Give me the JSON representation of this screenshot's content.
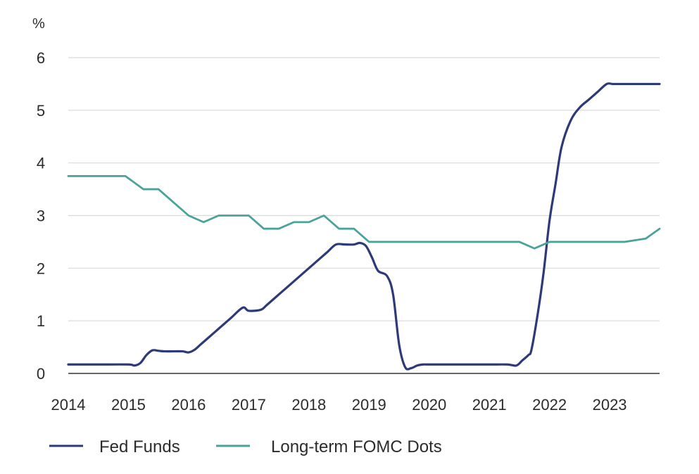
{
  "chart_data": {
    "type": "line",
    "title": "",
    "xlabel": "",
    "ylabel": "%",
    "xlim": [
      2014,
      2023.83
    ],
    "ylim": [
      0,
      6
    ],
    "grid": "horizontal",
    "legend_position": "bottom-left",
    "x_ticks": [
      2014,
      2015,
      2016,
      2017,
      2018,
      2019,
      2020,
      2021,
      2022,
      2023
    ],
    "x_tick_labels": [
      "2014",
      "2015",
      "2016",
      "2017",
      "2018",
      "2019",
      "2020",
      "2021",
      "2022",
      "2023"
    ],
    "y_ticks": [
      0,
      1,
      2,
      3,
      4,
      5,
      6
    ],
    "y_tick_labels": [
      "0",
      "1",
      "2",
      "3",
      "4",
      "5",
      "6"
    ],
    "series": [
      {
        "name": "Fed Funds",
        "color": "#2e3a78",
        "x": [
          2014.0,
          2014.5,
          2015.0,
          2015.1,
          2015.2,
          2015.3,
          2015.4,
          2015.5,
          2015.6,
          2015.75,
          2015.9,
          2016.0,
          2016.1,
          2016.2,
          2016.3,
          2016.5,
          2016.7,
          2016.9,
          2017.0,
          2017.2,
          2017.3,
          2017.5,
          2017.7,
          2017.9,
          2018.1,
          2018.3,
          2018.45,
          2018.6,
          2018.75,
          2018.85,
          2018.95,
          2019.05,
          2019.15,
          2019.3,
          2019.4,
          2019.5,
          2019.6,
          2019.7,
          2019.8,
          2019.9,
          2020.0,
          2020.5,
          2021.0,
          2021.3,
          2021.45,
          2021.55,
          2021.65,
          2021.7,
          2021.8,
          2021.9,
          2022.0,
          2022.1,
          2022.2,
          2022.35,
          2022.5,
          2022.65,
          2022.8,
          2022.95,
          2023.05,
          2023.15,
          2023.3,
          2023.5,
          2023.83
        ],
        "y": [
          0.17,
          0.17,
          0.17,
          0.15,
          0.2,
          0.35,
          0.44,
          0.43,
          0.42,
          0.42,
          0.42,
          0.4,
          0.45,
          0.55,
          0.65,
          0.85,
          1.05,
          1.25,
          1.19,
          1.21,
          1.3,
          1.5,
          1.7,
          1.9,
          2.1,
          2.3,
          2.45,
          2.45,
          2.45,
          2.48,
          2.42,
          2.2,
          1.95,
          1.85,
          1.5,
          0.55,
          0.12,
          0.1,
          0.15,
          0.17,
          0.17,
          0.17,
          0.17,
          0.17,
          0.15,
          0.25,
          0.35,
          0.45,
          1.1,
          1.9,
          2.9,
          3.6,
          4.3,
          4.8,
          5.05,
          5.2,
          5.35,
          5.5,
          5.5,
          5.5,
          5.5,
          5.5,
          5.5
        ]
      },
      {
        "name": "Long-term FOMC Dots",
        "color": "#4aa39a",
        "x": [
          2014.0,
          2014.5,
          2014.95,
          2015.25,
          2015.5,
          2015.75,
          2016.0,
          2016.25,
          2016.5,
          2016.75,
          2017.0,
          2017.25,
          2017.5,
          2017.75,
          2018.0,
          2018.25,
          2018.5,
          2018.75,
          2019.0,
          2019.5,
          2020.0,
          2020.5,
          2021.0,
          2021.5,
          2021.75,
          2022.0,
          2022.5,
          2023.0,
          2023.25,
          2023.6,
          2023.83
        ],
        "y": [
          3.75,
          3.75,
          3.75,
          3.5,
          3.5,
          3.25,
          3.0,
          2.875,
          3.0,
          3.0,
          3.0,
          2.75,
          2.75,
          2.875,
          2.875,
          3.0,
          2.75,
          2.75,
          2.5,
          2.5,
          2.5,
          2.5,
          2.5,
          2.5,
          2.375,
          2.5,
          2.5,
          2.5,
          2.5,
          2.5625,
          2.75
        ]
      }
    ],
    "axis_color": "#333333",
    "grid_color": "#d9d9d9",
    "text_color": "#2b2b2b"
  }
}
